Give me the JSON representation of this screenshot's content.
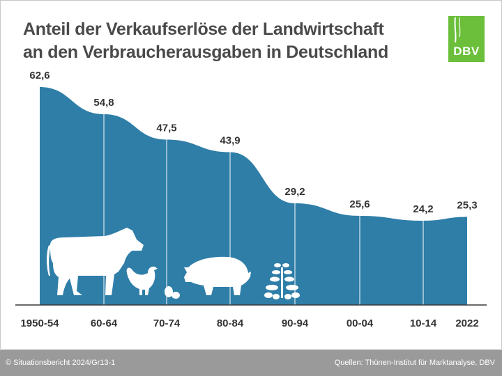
{
  "title_line1": "Anteil der Verkaufserlöse der Landwirtschaft",
  "title_line2": "an den Verbraucherausgaben in Deutschland",
  "logo_text": "DBV",
  "footer_left": "© Situationsbericht 2024/Gr13-1",
  "footer_right": "Quellen: Thünen-Institut für Marktanalyse, DBV",
  "colors": {
    "area": "#2f7ea8",
    "logo": "#6bbf3b",
    "footer": "#9a9a9a",
    "title": "#4a4a4a"
  },
  "icons": [
    "cow-icon",
    "chicken-icon",
    "eggs-icon",
    "pig-icon",
    "plant-icon"
  ],
  "chart_data": {
    "type": "area",
    "categories": [
      "1950-54",
      "60-64",
      "70-74",
      "80-84",
      "90-94",
      "00-04",
      "10-14",
      "2022"
    ],
    "values": [
      62.6,
      54.8,
      47.5,
      43.9,
      29.2,
      25.6,
      24.2,
      25.3
    ],
    "value_labels": [
      "62,6",
      "54,8",
      "47,5",
      "43,9",
      "29,2",
      "25,6",
      "24,2",
      "25,3"
    ],
    "ylim": [
      0,
      70
    ],
    "grid": false
  }
}
